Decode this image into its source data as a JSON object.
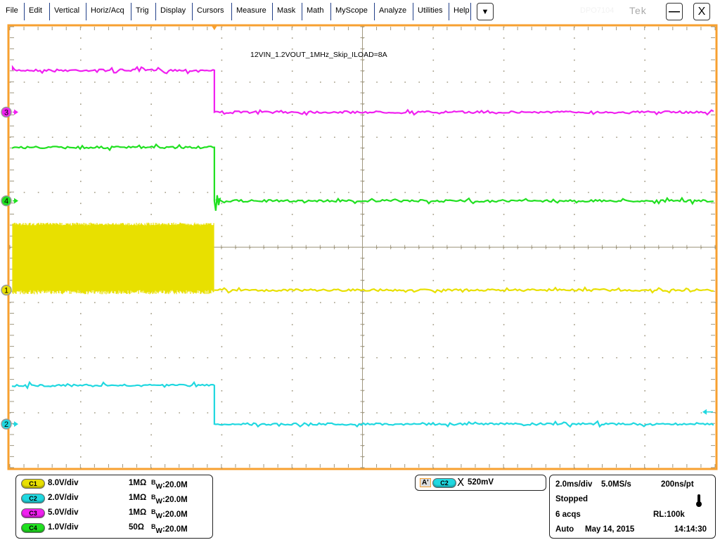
{
  "menu": {
    "items": [
      "File",
      "Edit",
      "Vertical",
      "Horiz/Acq",
      "Trig",
      "Display",
      "Cursors",
      "Measure",
      "Mask",
      "Math",
      "MyScope",
      "Analyze",
      "Utilities",
      "Help"
    ],
    "dropdown_icon": "triangle-down",
    "model": "DPO7104",
    "brand": "Tek",
    "minimize_label": "—",
    "close_label": "X"
  },
  "colors": {
    "C1": "#e8e000",
    "C2": "#20d8e0",
    "C3": "#f020f0",
    "C4": "#20e020",
    "frame": "#f7a030",
    "grid": "#a09880"
  },
  "display": {
    "annotation": "12VIN_1.2VOUT_1MHz_Skip_ILOAD=8A"
  },
  "channels": [
    {
      "id": "C1",
      "marker": "1",
      "scale": "8.0V/div",
      "impedance": "1MΩ",
      "bw_prefix": "B",
      "bw_sub": "W",
      "bw": ":20.0M"
    },
    {
      "id": "C2",
      "marker": "2",
      "scale": "2.0V/div",
      "impedance": "1MΩ",
      "bw_prefix": "B",
      "bw_sub": "W",
      "bw": ":20.0M"
    },
    {
      "id": "C3",
      "marker": "3",
      "scale": "5.0V/div",
      "impedance": "1MΩ",
      "bw_prefix": "B",
      "bw_sub": "W",
      "bw": ":20.0M"
    },
    {
      "id": "C4",
      "marker": "4",
      "scale": "1.0V/div",
      "impedance": "50Ω",
      "bw_prefix": "B",
      "bw_sub": "W",
      "bw": ":20.0M"
    }
  ],
  "trigger": {
    "label": "A'",
    "source": "C2",
    "slope_icon": "either-edge",
    "level": "520mV"
  },
  "horizontal": {
    "timebase": "2.0ms/div",
    "sample_rate": "5.0MS/s",
    "resolution": "200ns/pt",
    "state": "Stopped",
    "acqs": "6 acqs",
    "record_length": "RL:100k",
    "mode": "Auto",
    "date": "May 14, 2015",
    "time": "14:14:30",
    "thermometer_icon": "thermometer"
  },
  "chart_data": {
    "type": "line",
    "x_unit": "ms",
    "xlim": [
      -5.8,
      14.2
    ],
    "x_divisions": 10,
    "y_divisions": 8,
    "grid": true,
    "trigger_time_ms": 0,
    "series": [
      {
        "channel": "C3",
        "volts_per_div": 5.0,
        "offset_div": 2.45,
        "before_v": 3.8,
        "after_v": 0.0,
        "edge_ms": 0
      },
      {
        "channel": "C4",
        "volts_per_div": 1.0,
        "offset_div": 0.84,
        "before_v": 0.97,
        "after_v": 0.0,
        "edge_ms": 0,
        "ringing": true
      },
      {
        "channel": "C1",
        "volts_per_div": 8.0,
        "offset_div": -0.78,
        "before_v": 9.8,
        "before_min_v": 0.0,
        "after_v": 0.0,
        "edge_ms": 0,
        "switching_before": true
      },
      {
        "channel": "C2",
        "volts_per_div": 2.0,
        "offset_div": -3.21,
        "before_v": 1.4,
        "after_v": 0.0,
        "edge_ms": 0
      }
    ],
    "trigger_level_div": -2.99
  }
}
